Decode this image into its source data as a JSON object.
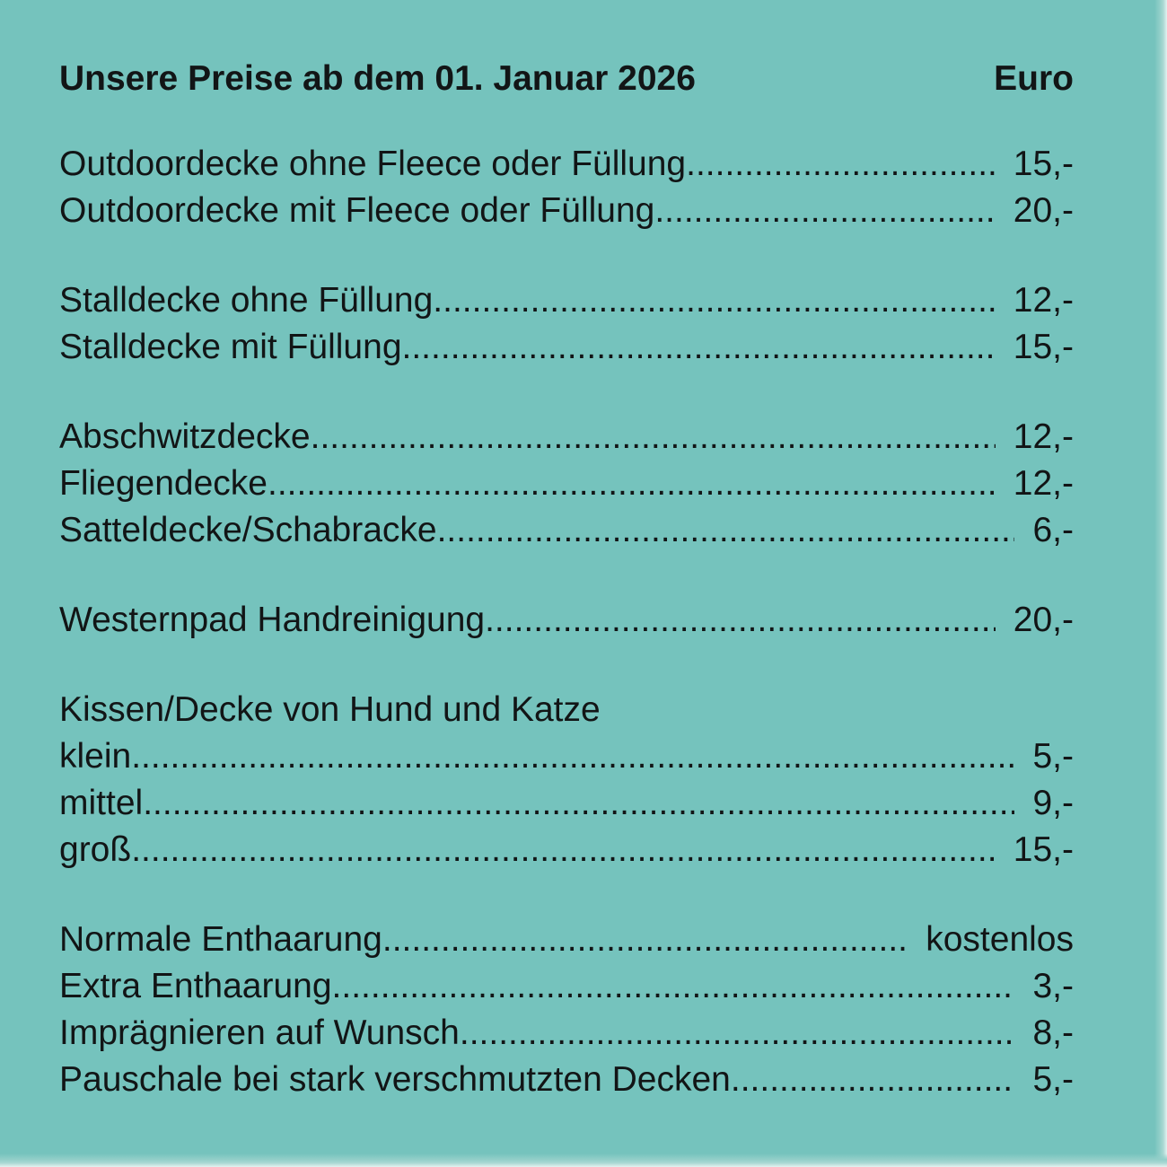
{
  "colors": {
    "background": "#75c3bd",
    "text": "#121516",
    "edge_mid": "#a9d8d3",
    "edge_light": "#e3f2f0"
  },
  "header": {
    "title": "Unsere Preise ab dem 01. Januar 2026",
    "currency_label": "Euro"
  },
  "leader_dots": "........................................................................................................................................................",
  "price_list": {
    "groups": [
      {
        "rows": [
          {
            "label": "Outdoordecke ohne Fleece oder Füllung",
            "price": "15,-"
          },
          {
            "label": "Outdoordecke mit Fleece oder Füllung",
            "price": "20,-"
          }
        ]
      },
      {
        "rows": [
          {
            "label": "Stalldecke ohne Füllung",
            "price": "12,-"
          },
          {
            "label": "Stalldecke mit Füllung",
            "price": "15,-"
          }
        ]
      },
      {
        "rows": [
          {
            "label": "Abschwitzdecke",
            "price": "12,-"
          },
          {
            "label": "Fliegendecke",
            "price": "12,-"
          },
          {
            "label": "Satteldecke/Schabracke",
            "price": "6,-"
          }
        ]
      },
      {
        "rows": [
          {
            "label": "Westernpad Handreinigung",
            "price": "20,-"
          }
        ]
      },
      {
        "heading": "Kissen/Decke von Hund und Katze",
        "rows": [
          {
            "label": "klein",
            "price": "5,-"
          },
          {
            "label": "mittel",
            "price": "9,-"
          },
          {
            "label": "groß",
            "price": "15,-"
          }
        ]
      },
      {
        "rows": [
          {
            "label": "Normale Enthaarung",
            "price": "kostenlos"
          },
          {
            "label": "Extra Enthaarung",
            "price": "3,-"
          },
          {
            "label": "Imprägnieren auf Wunsch",
            "price": "8,-"
          },
          {
            "label": "Pauschale bei stark verschmutzten Decken",
            "price": "5,-"
          }
        ]
      }
    ]
  }
}
